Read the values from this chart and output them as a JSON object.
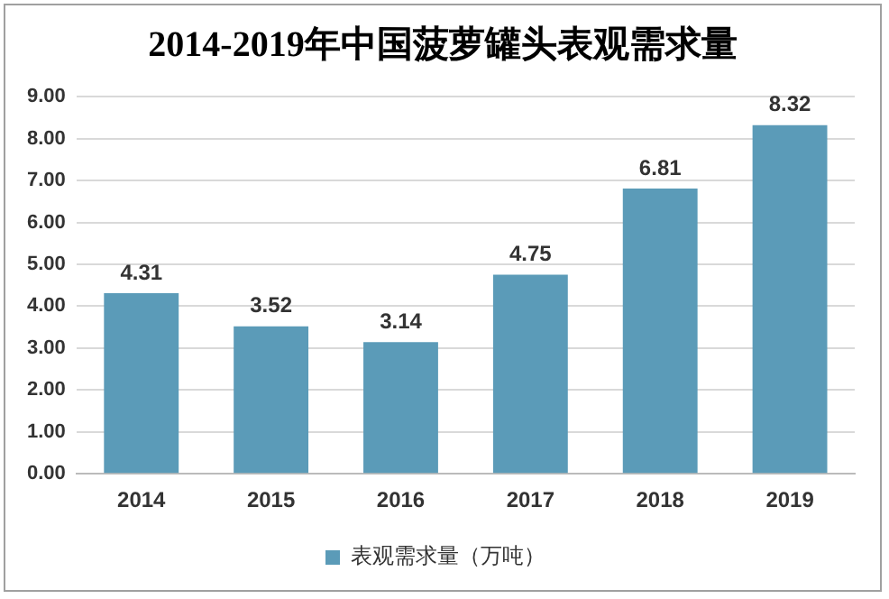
{
  "chart_data": {
    "type": "bar",
    "title": "2014-2019年中国菠萝罐头表观需求量",
    "categories": [
      "2014",
      "2015",
      "2016",
      "2017",
      "2018",
      "2019"
    ],
    "series": [
      {
        "name": "表观需求量（万吨）",
        "color": "#5b9bb8",
        "values": [
          4.31,
          3.52,
          3.14,
          4.75,
          6.81,
          8.32
        ]
      }
    ],
    "ylim": [
      0,
      9
    ],
    "yticks": [
      {
        "value": 0,
        "label": "0.00"
      },
      {
        "value": 1,
        "label": "1.00"
      },
      {
        "value": 2,
        "label": "2.00"
      },
      {
        "value": 3,
        "label": "3.00"
      },
      {
        "value": 4,
        "label": "4.00"
      },
      {
        "value": 5,
        "label": "5.00"
      },
      {
        "value": 6,
        "label": "6.00"
      },
      {
        "value": 7,
        "label": "7.00"
      },
      {
        "value": 8,
        "label": "8.00"
      },
      {
        "value": 9,
        "label": "9.00"
      }
    ],
    "grid": "y",
    "legend": "bottom",
    "data_labels": true
  }
}
